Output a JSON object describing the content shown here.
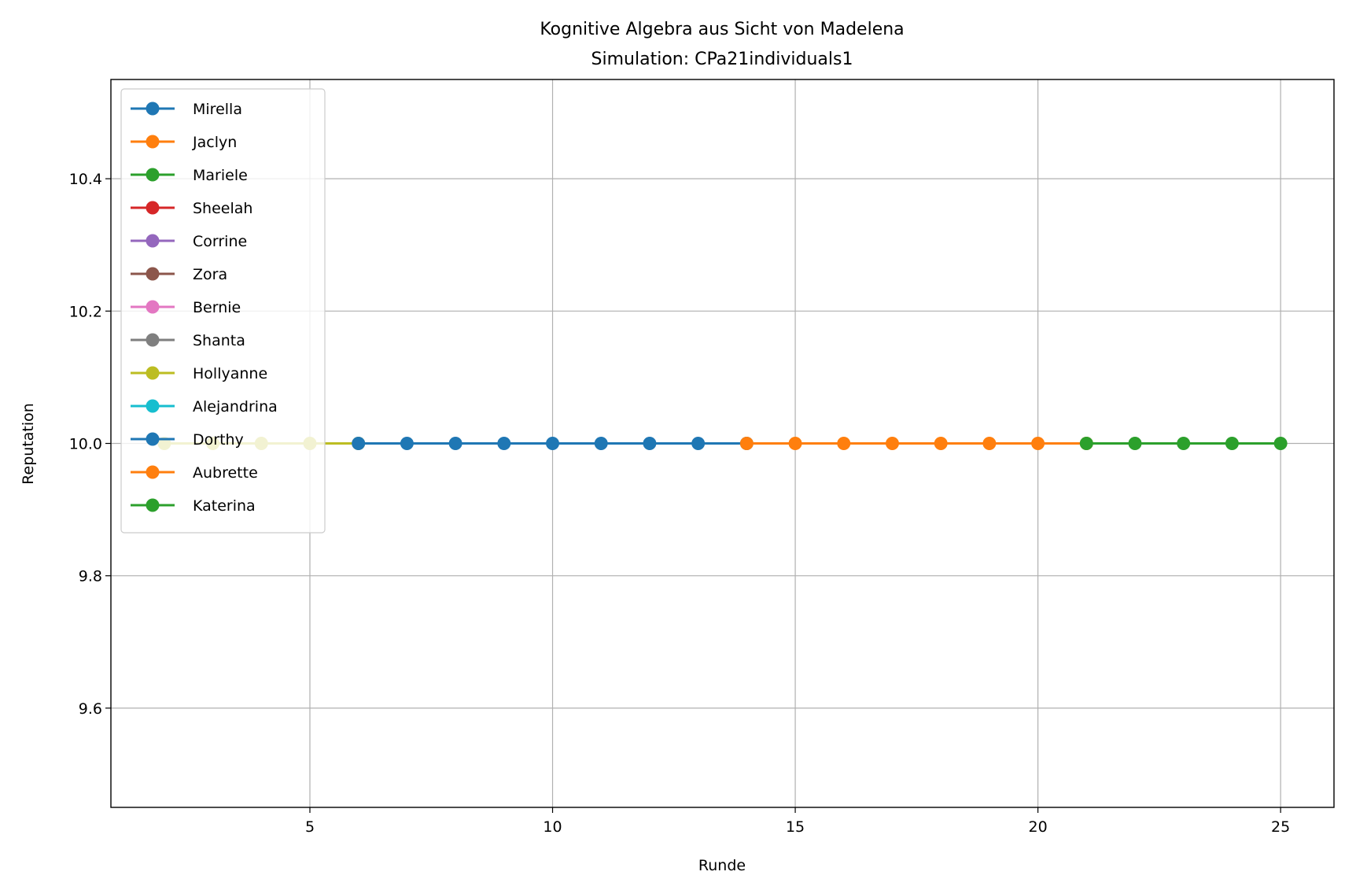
{
  "chart_data": {
    "type": "line",
    "title": "Kognitive Algebra aus Sicht von Madelena",
    "subtitle": "Simulation: CPa21individuals1",
    "xlabel": "Runde",
    "ylabel": "Reputation",
    "xlim": [
      0.9,
      26.1
    ],
    "ylim": [
      9.45,
      10.55
    ],
    "xticks": [
      5,
      10,
      15,
      20,
      25
    ],
    "yticks": [
      9.6,
      9.8,
      10.0,
      10.2,
      10.4
    ],
    "xtick_labels": [
      "5",
      "10",
      "15",
      "20",
      "25"
    ],
    "ytick_labels": [
      "9.6",
      "9.8",
      "10.0",
      "10.2",
      "10.4"
    ],
    "grid": true,
    "legend_position": "upper-left",
    "series": [
      {
        "name": "Mirella",
        "color": "#1f77b4",
        "x": [],
        "y": []
      },
      {
        "name": "Jaclyn",
        "color": "#ff7f0e",
        "x": [],
        "y": []
      },
      {
        "name": "Mariele",
        "color": "#2ca02c",
        "x": [],
        "y": []
      },
      {
        "name": "Sheelah",
        "color": "#d62728",
        "x": [],
        "y": []
      },
      {
        "name": "Corrine",
        "color": "#9467bd",
        "x": [],
        "y": []
      },
      {
        "name": "Zora",
        "color": "#8c564b",
        "x": [],
        "y": []
      },
      {
        "name": "Bernie",
        "color": "#e377c2",
        "x": [],
        "y": []
      },
      {
        "name": "Shanta",
        "color": "#7f7f7f",
        "x": [],
        "y": []
      },
      {
        "name": "Hollyanne",
        "color": "#bcbd22",
        "x": [
          2,
          3,
          4,
          5,
          6
        ],
        "y": [
          10.0,
          10.0,
          10.0,
          10.0,
          10.0
        ]
      },
      {
        "name": "Alejandrina",
        "color": "#17becf",
        "x": [],
        "y": []
      },
      {
        "name": "Dorthy",
        "color": "#1f77b4",
        "x": [
          6,
          7,
          8,
          9,
          10,
          11,
          12,
          13,
          14
        ],
        "y": [
          10.0,
          10.0,
          10.0,
          10.0,
          10.0,
          10.0,
          10.0,
          10.0,
          10.0
        ]
      },
      {
        "name": "Aubrette",
        "color": "#ff7f0e",
        "x": [
          14,
          15,
          16,
          17,
          18,
          19,
          20,
          21
        ],
        "y": [
          10.0,
          10.0,
          10.0,
          10.0,
          10.0,
          10.0,
          10.0,
          10.0
        ]
      },
      {
        "name": "Katerina",
        "color": "#2ca02c",
        "x": [
          21,
          22,
          23,
          24,
          25
        ],
        "y": [
          10.0,
          10.0,
          10.0,
          10.0,
          10.0
        ]
      }
    ]
  }
}
